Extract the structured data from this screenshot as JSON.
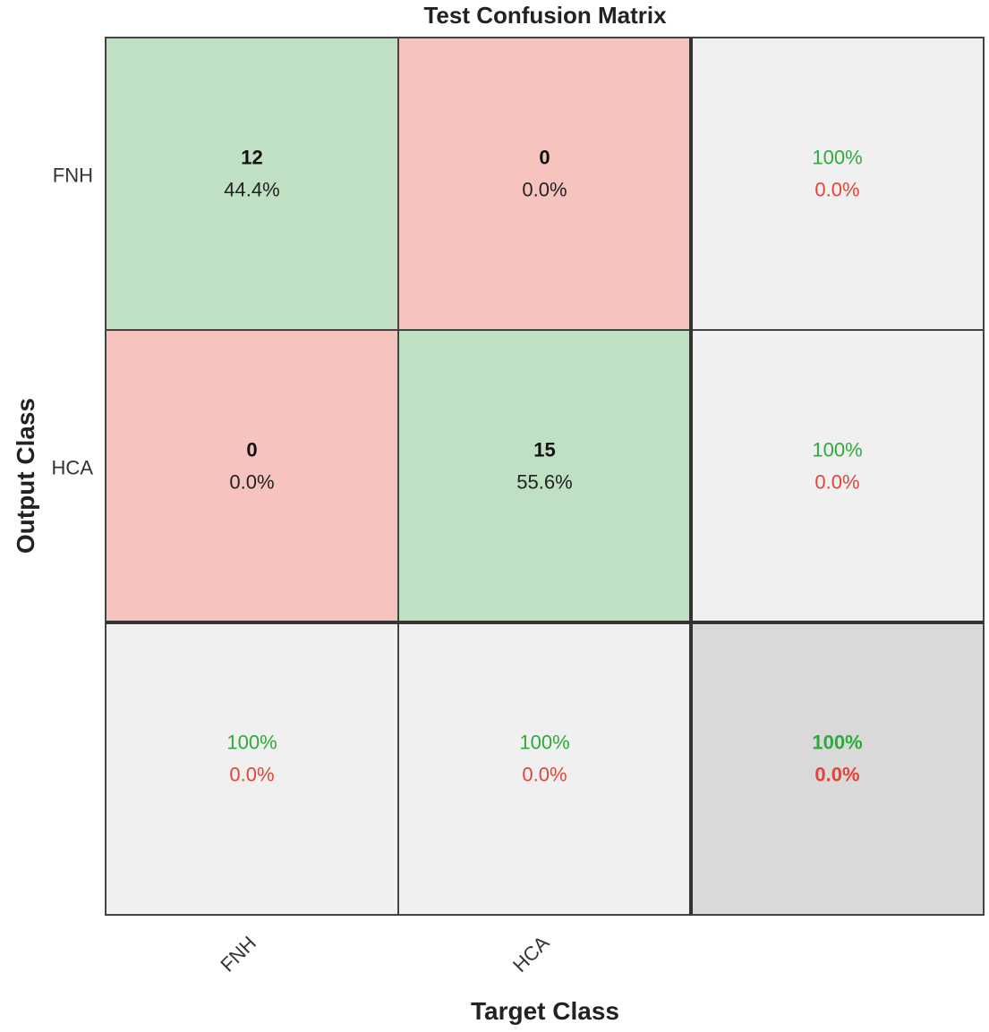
{
  "chart_data": {
    "type": "heatmap",
    "title": "Test Confusion Matrix",
    "xlabel": "Target Class",
    "ylabel": "Output Class",
    "classes": [
      "FNH",
      "HCA"
    ],
    "matrix": [
      [
        {
          "count": "12",
          "pct": "44.4%"
        },
        {
          "count": "0",
          "pct": "0.0%"
        }
      ],
      [
        {
          "count": "0",
          "pct": "0.0%"
        },
        {
          "count": "15",
          "pct": "55.6%"
        }
      ]
    ],
    "row_summary": [
      {
        "correct": "100%",
        "error": "0.0%"
      },
      {
        "correct": "100%",
        "error": "0.0%"
      }
    ],
    "col_summary": [
      {
        "correct": "100%",
        "error": "0.0%"
      },
      {
        "correct": "100%",
        "error": "0.0%"
      }
    ],
    "overall": {
      "correct": "100%",
      "error": "0.0%"
    },
    "colors": {
      "correct_cell": "#bfe0c3",
      "error_cell": "#f7c3bf",
      "summary_cell": "#f0f0f0",
      "overall_cell": "#d9d9d9",
      "correct_text": "#2eaa3c",
      "error_text": "#e0453a"
    }
  }
}
